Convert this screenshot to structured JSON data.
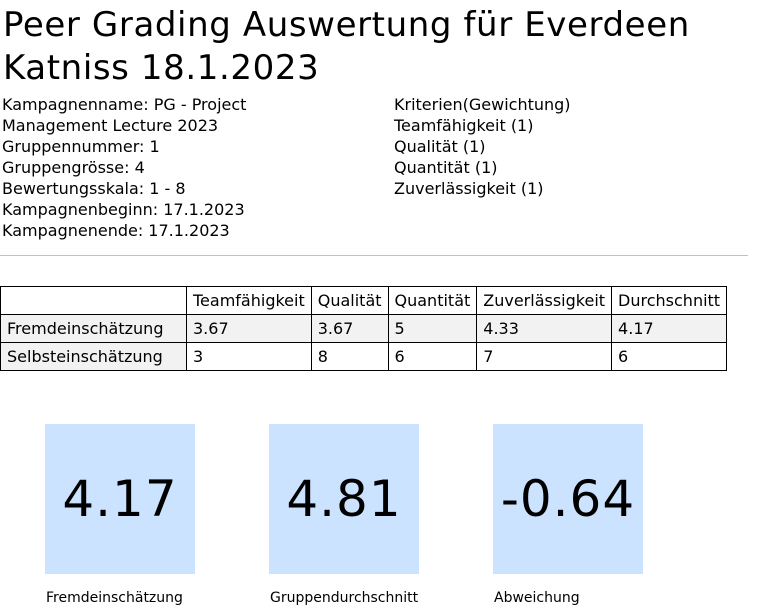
{
  "title": "Peer Grading Auswertung für Everdeen Katniss 18.1.2023",
  "info_left": [
    "Kampagnenname: PG - Project",
    "Management Lecture 2023",
    "Gruppennummer: 1",
    "Gruppengrösse: 4",
    "Bewertungsskala: 1 - 8",
    "Kampagnenbeginn: 17.1.2023",
    "Kampagnenende: 17.1.2023"
  ],
  "info_right": [
    "Kriterien(Gewichtung)",
    "Teamfähigkeit (1)",
    "Qualität (1)",
    "Quantität (1)",
    "Zuverlässigkeit (1)"
  ],
  "table": {
    "headers": [
      "",
      "Teamfähigkeit",
      "Qualität",
      "Quantität",
      "Zuverlässigkeit",
      "Durchschnitt"
    ],
    "rows": [
      [
        "Fremdeinschätzung",
        "3.67",
        "3.67",
        "5",
        "4.33",
        "4.17"
      ],
      [
        "Selbsteinschätzung",
        "3",
        "8",
        "6",
        "7",
        "6"
      ]
    ]
  },
  "tiles": [
    {
      "value": "4.17",
      "label": "Fremdeinschätzung"
    },
    {
      "value": "4.81",
      "label": "Gruppendurchschnitt"
    },
    {
      "value": "-0.64",
      "label": "Abweichung"
    }
  ],
  "colors": {
    "tile_background": "#cce3ff",
    "divider": "#e6c64a",
    "row_highlight": "#f2f2f2"
  }
}
